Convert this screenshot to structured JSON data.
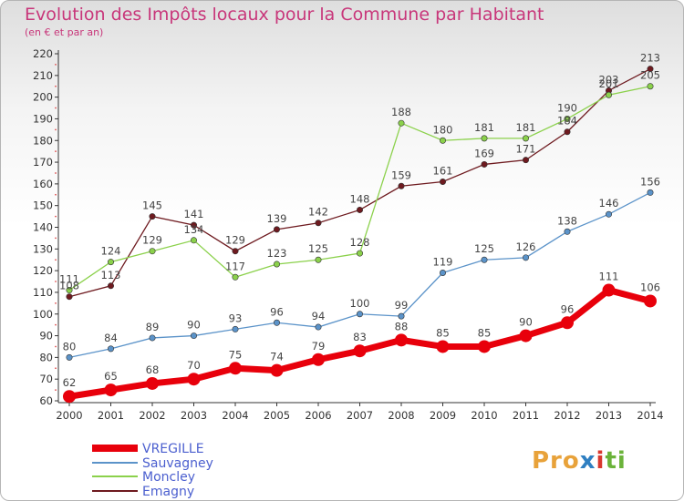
{
  "title": "Evolution des Impôts locaux pour la Commune par Habitant",
  "subtitle": "(en € et par an)",
  "brand": {
    "p1": "Pro",
    "p2": "x",
    "p3": "i",
    "p4": "ti"
  },
  "chart_data": {
    "type": "line",
    "title": "Evolution des Impôts locaux pour la Commune par Habitant",
    "subtitle": "(en € et par an)",
    "xlabel": "",
    "ylabel": "",
    "categories": [
      "2000",
      "2001",
      "2002",
      "2003",
      "2004",
      "2005",
      "2006",
      "2007",
      "2008",
      "2009",
      "2010",
      "2011",
      "2012",
      "2013",
      "2014"
    ],
    "ylim": [
      60,
      220
    ],
    "yticks": [
      60,
      70,
      80,
      90,
      100,
      110,
      120,
      130,
      140,
      150,
      160,
      170,
      180,
      190,
      200,
      210,
      220
    ],
    "grid": false,
    "legend_position": "bottom-left",
    "series": [
      {
        "name": "VREGILLE",
        "color": "#e8000b",
        "values": [
          62,
          65,
          68,
          70,
          75,
          74,
          79,
          83,
          88,
          85,
          85,
          90,
          96,
          111,
          106
        ]
      },
      {
        "name": "Sauvagney",
        "color": "#5b93c9",
        "values": [
          80,
          84,
          89,
          90,
          93,
          96,
          94,
          100,
          99,
          119,
          125,
          126,
          138,
          146,
          156
        ]
      },
      {
        "name": "Moncley",
        "color": "#8bd14b",
        "values": [
          111,
          124,
          129,
          134,
          117,
          123,
          125,
          128,
          188,
          180,
          181,
          181,
          190,
          201,
          205
        ]
      },
      {
        "name": "Emagny",
        "color": "#6e1a1f",
        "values": [
          108,
          113,
          145,
          141,
          129,
          139,
          142,
          148,
          159,
          161,
          169,
          171,
          184,
          203,
          213
        ]
      }
    ]
  }
}
